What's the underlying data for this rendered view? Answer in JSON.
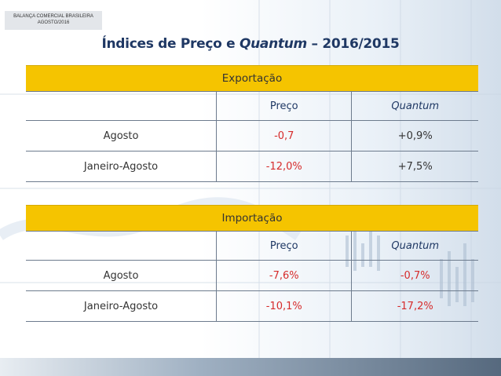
{
  "header": {
    "line1": "BALANÇA COMERCIAL BRASILEIRA",
    "line2": "AGOSTO/2016"
  },
  "title": {
    "part1": "Índices de Preço e ",
    "part2": "Quantum",
    "part3": " – 2016/2015"
  },
  "export": {
    "section": "Exportação",
    "col_preco": "Preço",
    "col_quantum": "Quantum",
    "rows": [
      {
        "label": "Agosto",
        "preco": "-0,7",
        "quantum": "+0,9%"
      },
      {
        "label": "Janeiro-Agosto",
        "preco": "-12,0%",
        "quantum": "+7,5%"
      }
    ]
  },
  "import": {
    "section": "Importação",
    "col_preco": "Preço",
    "col_quantum": "Quantum",
    "rows": [
      {
        "label": "Agosto",
        "preco": "-7,6%",
        "quantum": "-0,7%"
      },
      {
        "label": "Janeiro-Agosto",
        "preco": "-10,1%",
        "quantum": "-17,2%"
      }
    ]
  },
  "colors": {
    "accent": "#f5c400",
    "title": "#1f3864",
    "negative": "#d62b2b"
  }
}
